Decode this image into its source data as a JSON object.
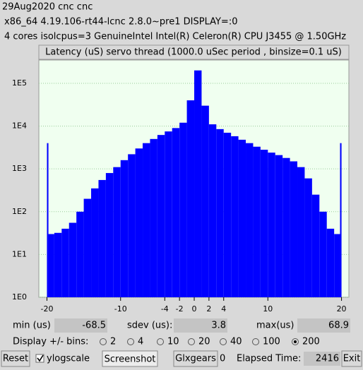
{
  "header": {
    "line1": "29Aug2020 cnc cnc",
    "line2": "x86_64  4.19.106-rt44-lcnc  2.8.0~pre1  DISPLAY=:0",
    "line3": "4 cores  isolcpus=3  GenuineIntel  Intel(R) Celeron(R) CPU J3455 @ 1.50GHz"
  },
  "chart_data": {
    "type": "histogram",
    "title": "Latency (uS) servo thread (1000.0 uSec period , binsize=0.1 uS)",
    "bins": [
      -20,
      -19.8,
      -19,
      -18,
      -17,
      -16,
      -15,
      -14,
      -13,
      -12,
      -11,
      -10,
      -9,
      -8,
      -7,
      -6,
      -5,
      -4,
      -3,
      -2,
      -1,
      0,
      1,
      2,
      3,
      4,
      5,
      6,
      7,
      8,
      9,
      10,
      11,
      12,
      13,
      14,
      15,
      16,
      17,
      18,
      19,
      19.8,
      20
    ],
    "counts": [
      4000,
      30,
      32,
      40,
      55,
      100,
      200,
      350,
      550,
      800,
      1100,
      1600,
      2200,
      3000,
      4000,
      5000,
      6200,
      7500,
      9000,
      12000,
      40000,
      200000,
      30000,
      11000,
      8500,
      7000,
      5800,
      4800,
      4000,
      3300,
      2800,
      2400,
      2100,
      1800,
      1500,
      1100,
      600,
      250,
      100,
      40,
      30,
      4000
    ],
    "color": "#0000ff",
    "log_scale": true,
    "grid": true,
    "xlim": [
      -21.1,
      21
    ],
    "xticks": [
      -20,
      -10,
      -4,
      -2,
      0,
      2,
      4,
      10,
      20
    ],
    "ylim": [
      1,
      350000
    ],
    "yticks": [
      {
        "value": 1,
        "label": "1E0"
      },
      {
        "value": 10,
        "label": "1E1"
      },
      {
        "value": 100,
        "label": "1E2"
      },
      {
        "value": 1000,
        "label": "1E3"
      },
      {
        "value": 10000,
        "label": "1E4"
      },
      {
        "value": 100000,
        "label": "1E5"
      }
    ]
  },
  "stats": {
    "min_label": "min (us)",
    "min": -68.5,
    "sdev_label": "sdev (us):",
    "sdev": 3.8,
    "max_label": "max(us)",
    "max": 68.9
  },
  "bins_control": {
    "label": "Display +/- bins:",
    "options": [
      "2",
      "4",
      "10",
      "20",
      "40",
      "100",
      "200"
    ],
    "selected": "200"
  },
  "toolbar": {
    "reset": "Reset",
    "ylogscale": "ylogscale",
    "ylogscale_checked": true,
    "screenshot": "Screenshot",
    "glxgears": "Glxgears",
    "glxgears_value": 0,
    "elapsed_label": "Elapsed Time:",
    "elapsed": 2416,
    "exit": "Exit"
  }
}
